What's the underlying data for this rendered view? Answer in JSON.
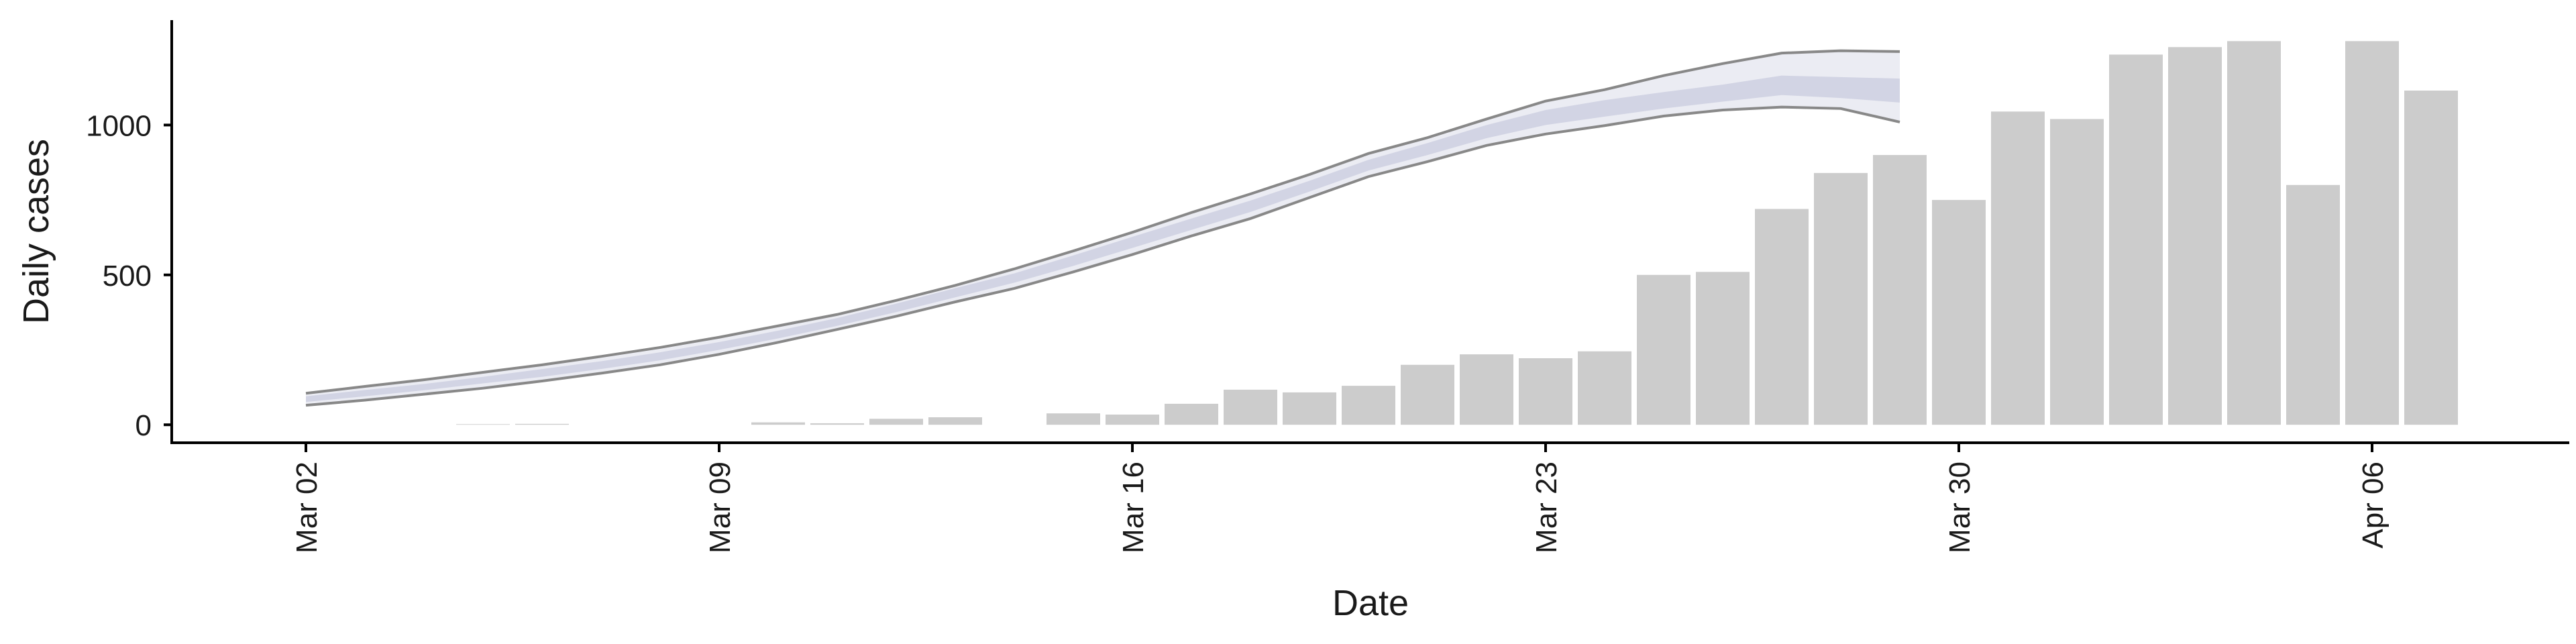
{
  "chart_data": {
    "type": "bar",
    "title": "",
    "xlabel": "Date",
    "ylabel": "Daily cases",
    "ylim": [
      -60,
      1350
    ],
    "yticks": [
      0,
      500,
      1000
    ],
    "x_start": "2020-03-02",
    "x_end": "2020-04-07",
    "xticks": [
      {
        "date": "2020-03-02",
        "label": "Mar 02"
      },
      {
        "date": "2020-03-09",
        "label": "Mar 09"
      },
      {
        "date": "2020-03-16",
        "label": "Mar 16"
      },
      {
        "date": "2020-03-23",
        "label": "Mar 23"
      },
      {
        "date": "2020-03-30",
        "label": "Mar 30"
      },
      {
        "date": "2020-04-06",
        "label": "Apr 06"
      }
    ],
    "bar_color": "#cccccc",
    "bars": {
      "dates": [
        "2020-03-02",
        "2020-03-03",
        "2020-03-04",
        "2020-03-05",
        "2020-03-06",
        "2020-03-07",
        "2020-03-08",
        "2020-03-09",
        "2020-03-10",
        "2020-03-11",
        "2020-03-12",
        "2020-03-13",
        "2020-03-14",
        "2020-03-15",
        "2020-03-16",
        "2020-03-17",
        "2020-03-18",
        "2020-03-19",
        "2020-03-20",
        "2020-03-21",
        "2020-03-22",
        "2020-03-23",
        "2020-03-24",
        "2020-03-25",
        "2020-03-26",
        "2020-03-27",
        "2020-03-28",
        "2020-03-29",
        "2020-03-30",
        "2020-03-31",
        "2020-04-01",
        "2020-04-02",
        "2020-04-03",
        "2020-04-04",
        "2020-04-05",
        "2020-04-06",
        "2020-04-07"
      ],
      "values": [
        0,
        0,
        0,
        2,
        3,
        0,
        0,
        0,
        8,
        5,
        20,
        25,
        0,
        38,
        34,
        70,
        117,
        108,
        130,
        200,
        235,
        222,
        245,
        500,
        510,
        720,
        840,
        900,
        750,
        1045,
        1020,
        1235,
        1260,
        1280,
        800,
        1280,
        1115
      ]
    },
    "band_color": "#c5c8dc",
    "nowcast": {
      "dates": [
        "2020-03-02",
        "2020-03-03",
        "2020-03-04",
        "2020-03-05",
        "2020-03-06",
        "2020-03-07",
        "2020-03-08",
        "2020-03-09",
        "2020-03-10",
        "2020-03-11",
        "2020-03-12",
        "2020-03-13",
        "2020-03-14",
        "2020-03-15",
        "2020-03-16",
        "2020-03-17",
        "2020-03-18",
        "2020-03-19",
        "2020-03-20",
        "2020-03-21",
        "2020-03-22",
        "2020-03-23",
        "2020-03-24",
        "2020-03-25",
        "2020-03-26",
        "2020-03-27",
        "2020-03-28",
        "2020-03-29"
      ],
      "median": [
        85,
        105,
        125,
        148,
        172,
        198,
        228,
        262,
        300,
        342,
        390,
        440,
        490,
        548,
        608,
        668,
        728,
        795,
        865,
        920,
        978,
        1025,
        1055,
        1078,
        1100,
        1130,
        1120,
        1115
      ],
      "lower_90": [
        65,
        82,
        102,
        122,
        146,
        172,
        200,
        235,
        275,
        318,
        362,
        410,
        455,
        510,
        568,
        630,
        688,
        758,
        828,
        878,
        932,
        970,
        998,
        1030,
        1050,
        1060,
        1055,
        1010
      ],
      "upper_90": [
        105,
        128,
        150,
        175,
        200,
        228,
        258,
        292,
        330,
        368,
        415,
        465,
        520,
        580,
        642,
        708,
        770,
        835,
        905,
        958,
        1020,
        1080,
        1118,
        1165,
        1205,
        1240,
        1248,
        1245
      ],
      "lower_50": [
        76,
        95,
        115,
        138,
        160,
        186,
        215,
        250,
        288,
        330,
        376,
        425,
        474,
        530,
        590,
        650,
        710,
        778,
        848,
        900,
        956,
        1000,
        1028,
        1055,
        1078,
        1100,
        1090,
        1075
      ],
      "upper_50": [
        95,
        116,
        136,
        160,
        186,
        212,
        242,
        276,
        314,
        356,
        404,
        456,
        505,
        565,
        627,
        688,
        748,
        814,
        884,
        940,
        1000,
        1050,
        1083,
        1110,
        1135,
        1165,
        1160,
        1155
      ]
    },
    "grid": false,
    "legend": "none"
  }
}
